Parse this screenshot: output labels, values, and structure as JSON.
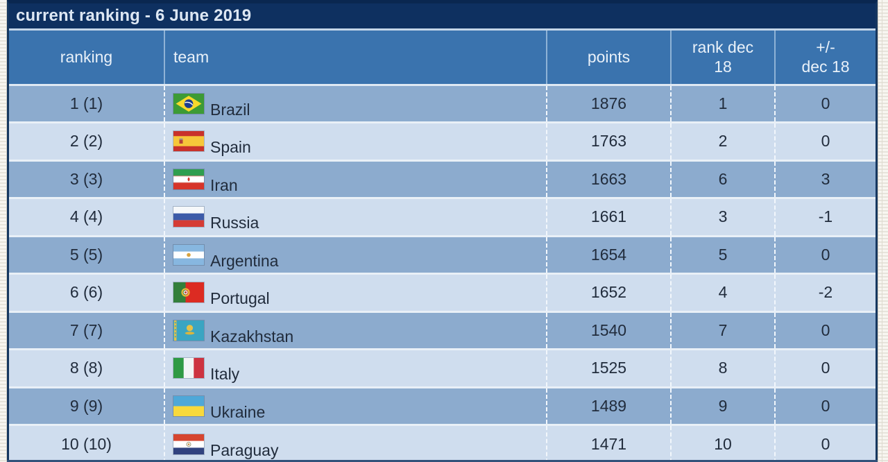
{
  "title_bar": {
    "text": "current ranking - 6 June 2019"
  },
  "table": {
    "columns": [
      {
        "key": "ranking",
        "label": "ranking",
        "lines": [
          "ranking"
        ]
      },
      {
        "key": "team",
        "label": "team",
        "lines": [
          "team"
        ]
      },
      {
        "key": "points",
        "label": "points",
        "lines": [
          "points"
        ]
      },
      {
        "key": "rank_dec",
        "label": "rank dec 18",
        "lines": [
          "rank dec",
          "18"
        ]
      },
      {
        "key": "change",
        "label": "+/- dec 18",
        "lines": [
          "+/-",
          "dec 18"
        ]
      }
    ],
    "rows": [
      {
        "ranking": "1 (1)",
        "team": "Brazil",
        "flag": "flag-brazil",
        "points": "1876",
        "rank_dec": "1",
        "change": "0"
      },
      {
        "ranking": "2 (2)",
        "team": "Spain",
        "flag": "flag-spain",
        "points": "1763",
        "rank_dec": "2",
        "change": "0"
      },
      {
        "ranking": "3 (3)",
        "team": "Iran",
        "flag": "flag-iran",
        "points": "1663",
        "rank_dec": "6",
        "change": "3"
      },
      {
        "ranking": "4 (4)",
        "team": "Russia",
        "flag": "flag-russia",
        "points": "1661",
        "rank_dec": "3",
        "change": "-1"
      },
      {
        "ranking": "5 (5)",
        "team": "Argentina",
        "flag": "flag-argentina",
        "points": "1654",
        "rank_dec": "5",
        "change": "0"
      },
      {
        "ranking": "6 (6)",
        "team": "Portugal",
        "flag": "flag-portugal",
        "points": "1652",
        "rank_dec": "4",
        "change": "-2"
      },
      {
        "ranking": "7 (7)",
        "team": "Kazakhstan",
        "flag": "flag-kazakhstan",
        "points": "1540",
        "rank_dec": "7",
        "change": "0"
      },
      {
        "ranking": "8 (8)",
        "team": "Italy",
        "flag": "flag-italy",
        "points": "1525",
        "rank_dec": "8",
        "change": "0"
      },
      {
        "ranking": "9 (9)",
        "team": "Ukraine",
        "flag": "flag-ukraine",
        "points": "1489",
        "rank_dec": "9",
        "change": "0"
      },
      {
        "ranking": "10 (10)",
        "team": "Paraguay",
        "flag": "flag-paraguay",
        "points": "1471",
        "rank_dec": "10",
        "change": "0"
      }
    ]
  },
  "colors": {
    "title_navy": "#0e3060",
    "outer_border": "#0a2750",
    "header_blue": "#3a73ae",
    "row_odd": "#8cabce",
    "row_even": "#cfddee",
    "separator_light": "#e9f0f7",
    "header_text": "#e9f1f9",
    "data_text": "#212c3c",
    "paper_edge": "#f8f6f1"
  }
}
